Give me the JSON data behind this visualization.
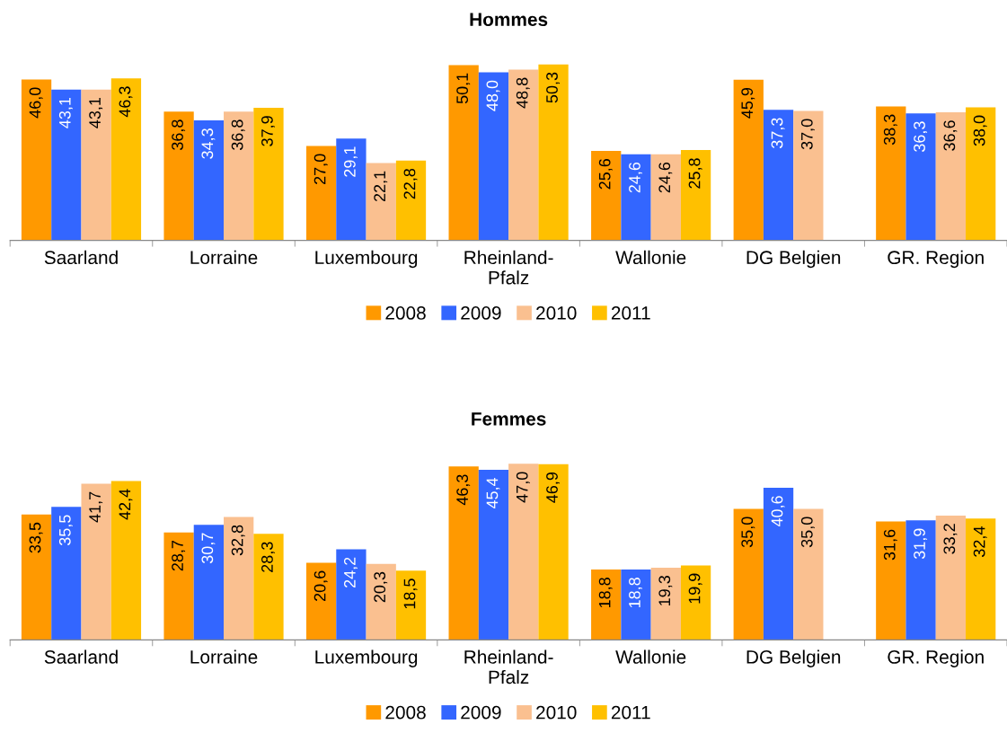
{
  "chart_data": [
    {
      "type": "bar",
      "title": "Hommes",
      "categories": [
        "Saarland",
        "Lorraine",
        "Luxembourg",
        "Rheinland-Pfalz",
        "Wallonie",
        "DG Belgien",
        "GR. Region"
      ],
      "legend": "bottom",
      "grid": false,
      "series": [
        {
          "name": "2008",
          "color": "#ff9900",
          "values": [
            46.0,
            36.8,
            27.0,
            50.1,
            25.6,
            45.9,
            38.3
          ],
          "value_labels": [
            "46,0",
            "36,8",
            "27,0",
            "50,1",
            "25,6",
            "45,9",
            "38,3"
          ]
        },
        {
          "name": "2009",
          "color": "#3366ff",
          "values": [
            43.1,
            34.3,
            29.1,
            48.0,
            24.6,
            37.3,
            36.3
          ],
          "value_labels": [
            "43,1",
            "34,3",
            "29,1",
            "48,0",
            "24,6",
            "37,3",
            "36,3"
          ]
        },
        {
          "name": "2010",
          "color": "#fac090",
          "values": [
            43.1,
            36.8,
            22.1,
            48.8,
            24.6,
            37.0,
            36.6
          ],
          "value_labels": [
            "43,1",
            "36,8",
            "22,1",
            "48,8",
            "24,6",
            "37,0",
            "36,6"
          ]
        },
        {
          "name": "2011",
          "color": "#ffc000",
          "values": [
            46.3,
            37.9,
            22.8,
            50.3,
            25.8,
            null,
            38.0
          ],
          "value_labels": [
            "46,3",
            "37,9",
            "22,8",
            "50,3",
            "25,8",
            null,
            "38,0"
          ]
        }
      ]
    },
    {
      "type": "bar",
      "title": "Femmes",
      "categories": [
        "Saarland",
        "Lorraine",
        "Luxembourg",
        "Rheinland-Pfalz",
        "Wallonie",
        "DG Belgien",
        "GR. Region"
      ],
      "legend": "bottom",
      "grid": false,
      "series": [
        {
          "name": "2008",
          "color": "#ff9900",
          "values": [
            33.5,
            28.7,
            20.6,
            46.3,
            18.8,
            35.0,
            31.6
          ],
          "value_labels": [
            "33,5",
            "28,7",
            "20,6",
            "46,3",
            "18,8",
            "35,0",
            "31,6"
          ]
        },
        {
          "name": "2009",
          "color": "#3366ff",
          "values": [
            35.5,
            30.7,
            24.2,
            45.4,
            18.8,
            40.6,
            31.9
          ],
          "value_labels": [
            "35,5",
            "30,7",
            "24,2",
            "45,4",
            "18,8",
            "40,6",
            "31,9"
          ]
        },
        {
          "name": "2010",
          "color": "#fac090",
          "values": [
            41.7,
            32.8,
            20.3,
            47.0,
            19.3,
            35.0,
            33.2
          ],
          "value_labels": [
            "41,7",
            "32,8",
            "20,3",
            "47,0",
            "19,3",
            "35,0",
            "33,2"
          ]
        },
        {
          "name": "2011",
          "color": "#ffc000",
          "values": [
            42.4,
            28.3,
            18.5,
            46.9,
            19.9,
            null,
            32.4
          ],
          "value_labels": [
            "42,4",
            "28,3",
            "18,5",
            "46,9",
            "19,9",
            null,
            "32,4"
          ]
        }
      ]
    }
  ]
}
